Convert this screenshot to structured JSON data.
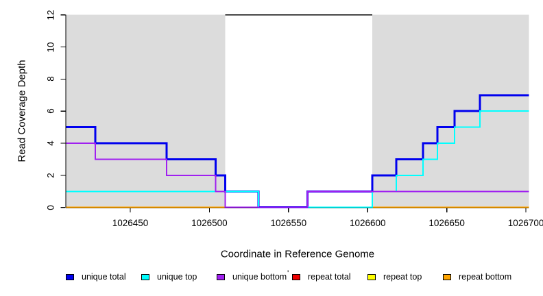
{
  "chart_data": {
    "type": "line",
    "subtype": "step-coverage-plot",
    "title": "",
    "xlabel": "Coordinate in Reference Genome",
    "ylabel": "Read Coverage Depth",
    "xlim": [
      1026409.5,
      1026702
    ],
    "ylim": [
      0,
      12
    ],
    "x_ticks": [
      1026450,
      1026500,
      1026550,
      1026600,
      1026650,
      1026700
    ],
    "y_ticks": [
      0,
      2,
      4,
      6,
      8,
      10,
      12
    ],
    "grid": "off",
    "background_regions": {
      "color": "#DCDCDC",
      "regions": [
        [
          1026409.5,
          1026510
        ],
        [
          1026603,
          1026702
        ]
      ]
    },
    "gap_marker_line": {
      "y": 12,
      "x0": 1026510,
      "x1": 1026603,
      "color": "#000000"
    },
    "series": [
      {
        "name": "repeat total",
        "color": "#EE0000",
        "width": 2,
        "points": [
          [
            1026409.5,
            0
          ],
          [
            1026702,
            0
          ]
        ]
      },
      {
        "name": "repeat top",
        "color": "#FFFF00",
        "width": 2,
        "points": [
          [
            1026409.5,
            0
          ],
          [
            1026702,
            0
          ]
        ]
      },
      {
        "name": "repeat bottom",
        "color": "#FFA500",
        "width": 2,
        "points": [
          [
            1026409.5,
            0
          ],
          [
            1026702,
            0
          ]
        ]
      },
      {
        "name": "unique total",
        "color": "#0000EE",
        "width": 3,
        "points": [
          [
            1026409.5,
            5
          ],
          [
            1026428,
            5
          ],
          [
            1026428,
            4
          ],
          [
            1026473,
            4
          ],
          [
            1026473,
            3
          ],
          [
            1026504,
            3
          ],
          [
            1026504,
            2
          ],
          [
            1026510,
            2
          ],
          [
            1026510,
            1
          ],
          [
            1026531,
            1
          ],
          [
            1026531,
            0
          ],
          [
            1026562,
            0
          ],
          [
            1026562,
            1
          ],
          [
            1026603,
            1
          ],
          [
            1026603,
            2
          ],
          [
            1026618,
            2
          ],
          [
            1026618,
            3
          ],
          [
            1026635,
            3
          ],
          [
            1026635,
            4
          ],
          [
            1026644,
            4
          ],
          [
            1026644,
            5
          ],
          [
            1026655,
            5
          ],
          [
            1026655,
            6
          ],
          [
            1026671,
            6
          ],
          [
            1026671,
            7
          ],
          [
            1026702,
            7
          ]
        ]
      },
      {
        "name": "unique top",
        "color": "#00FFFF",
        "width": 2,
        "points": [
          [
            1026409.5,
            1
          ],
          [
            1026531,
            1
          ],
          [
            1026531,
            0
          ],
          [
            1026603,
            0
          ],
          [
            1026603,
            1
          ],
          [
            1026618,
            1
          ],
          [
            1026618,
            2
          ],
          [
            1026635,
            2
          ],
          [
            1026635,
            3
          ],
          [
            1026644,
            3
          ],
          [
            1026644,
            4
          ],
          [
            1026655,
            4
          ],
          [
            1026655,
            5
          ],
          [
            1026671,
            5
          ],
          [
            1026671,
            6
          ],
          [
            1026702,
            6
          ]
        ]
      },
      {
        "name": "unique bottom",
        "color": "#A020F0",
        "width": 2,
        "points": [
          [
            1026409.5,
            4
          ],
          [
            1026428,
            4
          ],
          [
            1026428,
            3
          ],
          [
            1026473,
            3
          ],
          [
            1026473,
            2
          ],
          [
            1026504,
            2
          ],
          [
            1026504,
            1
          ],
          [
            1026510,
            1
          ],
          [
            1026510,
            0
          ],
          [
            1026562,
            0
          ],
          [
            1026562,
            1
          ],
          [
            1026702,
            1
          ]
        ]
      }
    ],
    "legend": [
      {
        "label": "unique total",
        "color": "#0000EE"
      },
      {
        "label": "unique top",
        "color": "#00FFFF"
      },
      {
        "label": "unique bottom",
        "color": "#A020F0"
      },
      {
        "label": "repeat total",
        "color": "#EE0000"
      },
      {
        "label": "repeat top",
        "color": "#FFFF00"
      },
      {
        "label": "repeat bottom",
        "color": "#FFA500"
      }
    ],
    "legend_position": "bottom"
  },
  "artifacts": {
    "stray_mark": "'"
  }
}
